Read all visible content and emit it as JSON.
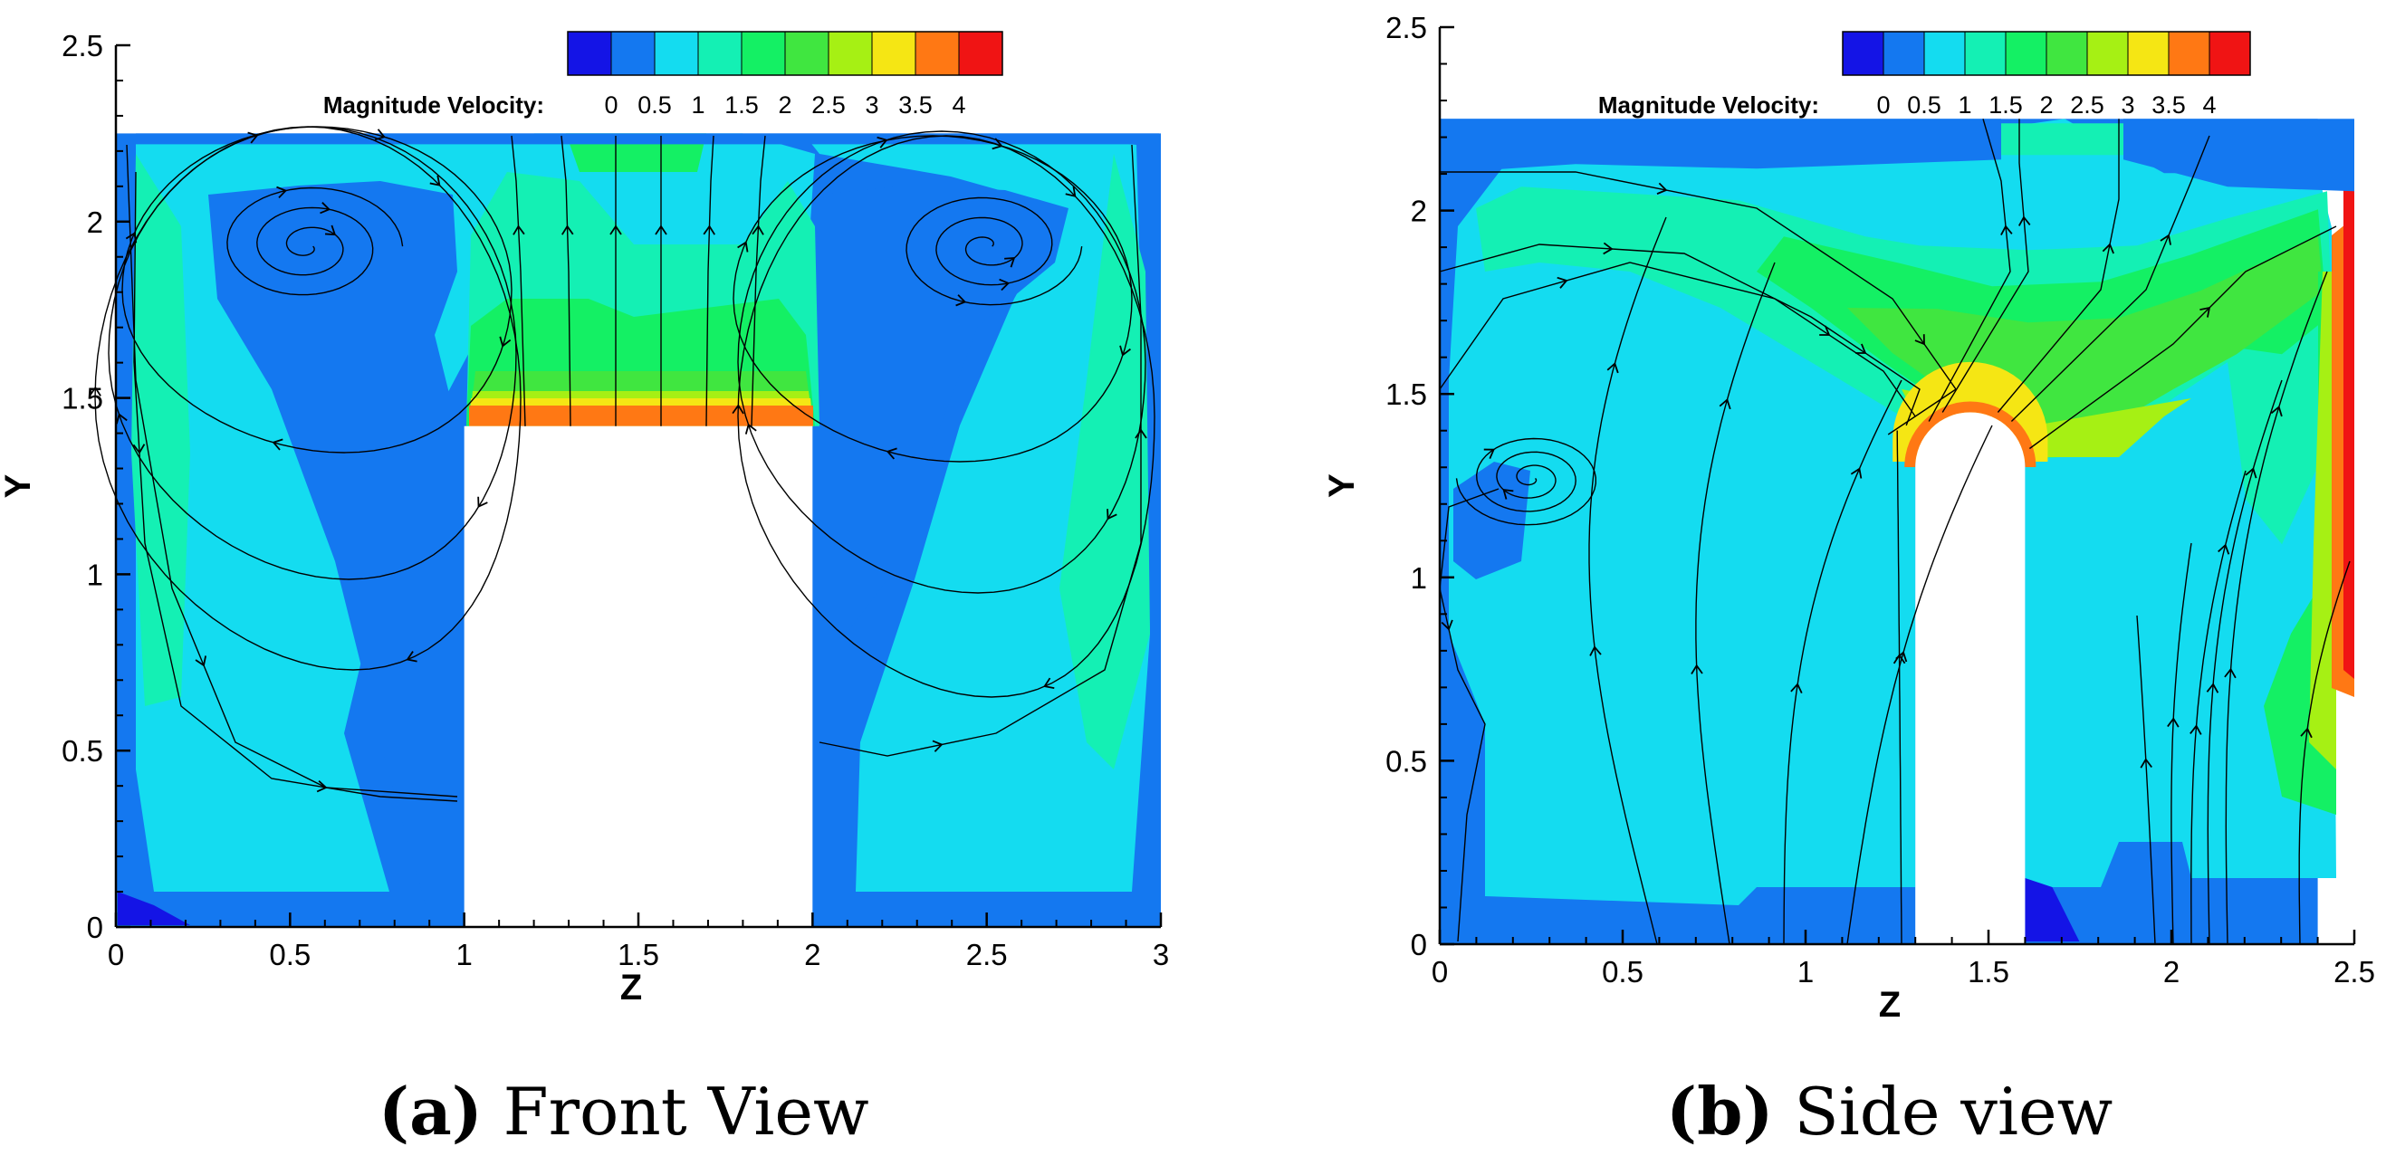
{
  "colors": {
    "levels": [
      "#1414e6",
      "#1478f0",
      "#14dcf0",
      "#14f0b4",
      "#14f064",
      "#40e640",
      "#a6f014",
      "#f5e614",
      "#ff7814",
      "#f01414"
    ],
    "streamline": "#000000",
    "background": "#ffffff"
  },
  "chart_data": [
    {
      "type": "contour",
      "xlabel": "Z",
      "ylabel": "Y",
      "xlim": [
        0,
        3
      ],
      "ylim": [
        0,
        2.5
      ],
      "xticks": [
        "0",
        "0.5",
        "1",
        "1.5",
        "2",
        "2.5",
        "3"
      ],
      "yticks": [
        "0",
        "0.5",
        "1",
        "1.5",
        "2",
        "2.5"
      ],
      "legend": {
        "title": "Magnitude Velocity:",
        "labels": [
          "0",
          "0.5",
          "1",
          "1.5",
          "2",
          "2.5",
          "3",
          "3.5",
          "4"
        ],
        "placement": "top"
      },
      "domain_top": 2.25,
      "obstacle": {
        "z": [
          1,
          2
        ],
        "y": [
          0,
          1.42
        ]
      },
      "vortex_centers": [
        [
          0.55,
          1.93
        ],
        [
          2.5,
          1.93
        ]
      ],
      "caption": {
        "letter": "(a)",
        "text": " Front View"
      }
    },
    {
      "type": "contour",
      "xlabel": "Z",
      "ylabel": "Y",
      "xlim": [
        0,
        2.5
      ],
      "ylim": [
        0,
        2.5
      ],
      "xticks": [
        "0",
        "0.5",
        "1",
        "1.5",
        "2",
        "2.5"
      ],
      "yticks": [
        "0",
        "0.5",
        "1",
        "1.5",
        "2",
        "2.5"
      ],
      "legend": {
        "title": "Magnitude Velocity:",
        "labels": [
          "0",
          "0.5",
          "1",
          "1.5",
          "2",
          "2.5",
          "3",
          "3.5",
          "4"
        ],
        "placement": "top"
      },
      "domain_top": 2.25,
      "domain_right": 2.4,
      "obstacle": {
        "z": [
          1.3,
          1.6
        ],
        "y": [
          0,
          1.45
        ]
      },
      "vortex_centers": [
        [
          0.25,
          1.27
        ]
      ],
      "caption": {
        "letter": "(b)",
        "text": " Side view"
      }
    }
  ]
}
